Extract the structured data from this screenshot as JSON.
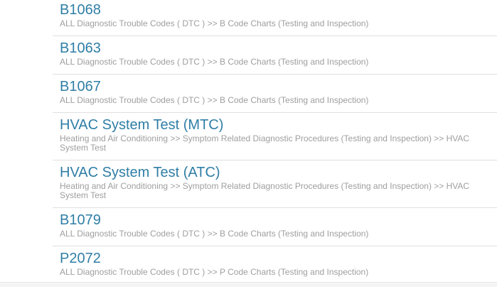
{
  "results": {
    "items": [
      {
        "title": "B1068",
        "description": "ALL Diagnostic Trouble Codes ( DTC ) >> B Code Charts (Testing and Inspection)"
      },
      {
        "title": "B1063",
        "description": "ALL Diagnostic Trouble Codes ( DTC ) >> B Code Charts (Testing and Inspection)"
      },
      {
        "title": "B1067",
        "description": "ALL Diagnostic Trouble Codes ( DTC ) >> B Code Charts (Testing and Inspection)"
      },
      {
        "title": "HVAC System Test (MTC)",
        "description": "Heating and Air Conditioning >> Symptom Related Diagnostic Procedures (Testing and Inspection) >> HVAC System Test"
      },
      {
        "title": "HVAC System Test (ATC)",
        "description": "Heating and Air Conditioning >> Symptom Related Diagnostic Procedures (Testing and Inspection) >> HVAC System Test"
      },
      {
        "title": "B1079",
        "description": "ALL Diagnostic Trouble Codes ( DTC ) >> B Code Charts (Testing and Inspection)"
      },
      {
        "title": "P2072",
        "description": "ALL Diagnostic Trouble Codes ( DTC ) >> P Code Charts (Testing and Inspection)"
      }
    ]
  },
  "colors": {
    "title_link": "#2f7ea6",
    "description_text": "#9e9e9e",
    "divider": "#e0e0e0",
    "bottom_bar": "#f4f4f4",
    "background": "#ffffff"
  }
}
